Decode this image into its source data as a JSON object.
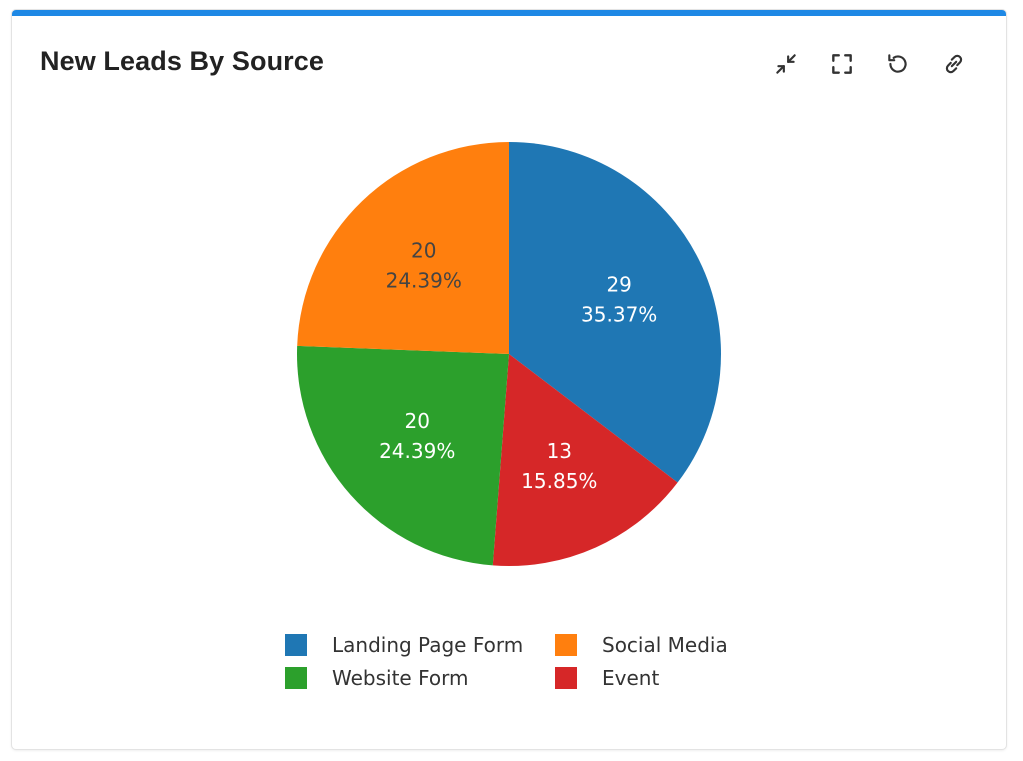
{
  "card": {
    "title": "New Leads By Source",
    "accent_color": "#1e88e5"
  },
  "toolbar": {
    "icons": [
      "collapse-icon",
      "fullscreen-icon",
      "refresh-icon",
      "link-icon"
    ]
  },
  "chart_data": {
    "type": "pie",
    "title": "New Leads By Source",
    "categories": [
      "Landing Page Form",
      "Social Media",
      "Website Form",
      "Event"
    ],
    "values": [
      29,
      20,
      20,
      13
    ],
    "percent_labels": [
      "35.37%",
      "24.39%",
      "24.39%",
      "15.85%"
    ],
    "colors": [
      "#1f77b4",
      "#ff7f0e",
      "#2ca02c",
      "#d62728"
    ],
    "slice_order": [
      "Landing Page Form",
      "Event",
      "Website Form",
      "Social Media"
    ],
    "start_angle": "top, clockwise",
    "legend_position": "bottom"
  }
}
